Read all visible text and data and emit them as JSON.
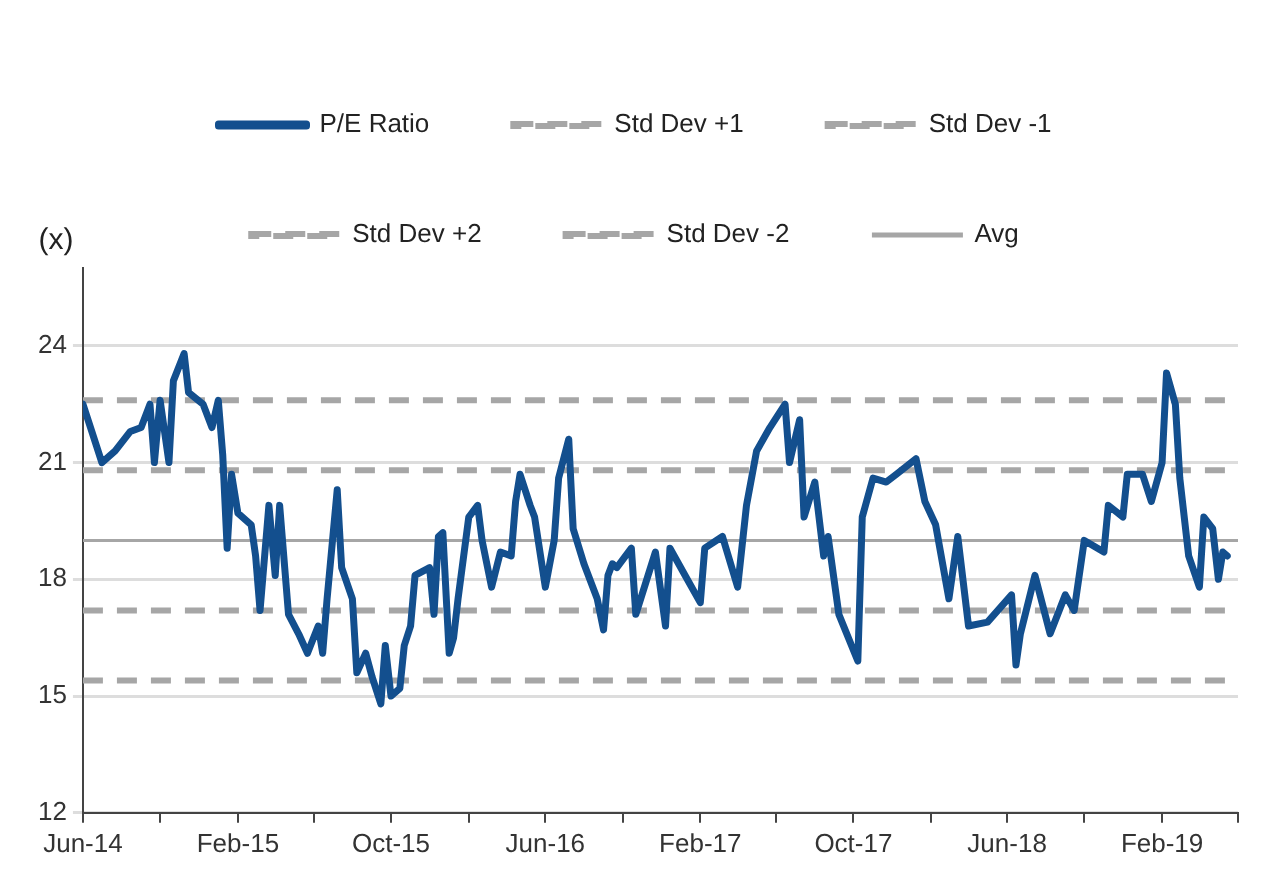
{
  "chart_data": {
    "type": "line",
    "ylabel": "(x)",
    "series": [
      {
        "name": "P/E Ratio",
        "color": "#134f8e",
        "x": [
          "2014-06-01",
          "2014-06-15",
          "2014-07-01",
          "2014-07-22",
          "2014-08-15",
          "2014-09-01",
          "2014-09-15",
          "2014-09-22",
          "2014-10-01",
          "2014-10-15",
          "2014-10-22",
          "2014-11-08",
          "2014-11-15",
          "2014-12-08",
          "2014-12-22",
          "2015-01-01",
          "2015-01-08",
          "2015-01-15",
          "2015-01-22",
          "2015-02-01",
          "2015-02-22",
          "2015-03-01",
          "2015-03-08",
          "2015-03-22",
          "2015-04-01",
          "2015-04-08",
          "2015-04-22",
          "2015-05-08",
          "2015-05-22",
          "2015-06-08",
          "2015-06-15",
          "2015-06-22",
          "2015-07-08",
          "2015-07-15",
          "2015-08-01",
          "2015-08-08",
          "2015-08-22",
          "2015-09-01",
          "2015-09-15",
          "2015-09-22",
          "2015-10-01",
          "2015-10-15",
          "2015-10-22",
          "2015-11-01",
          "2015-11-08",
          "2015-12-01",
          "2015-12-08",
          "2015-12-15",
          "2015-12-22",
          "2016-01-01",
          "2016-01-08",
          "2016-01-15",
          "2016-02-01",
          "2016-02-15",
          "2016-02-22",
          "2016-03-08",
          "2016-03-22",
          "2016-04-08",
          "2016-04-15",
          "2016-04-22",
          "2016-05-08",
          "2016-05-15",
          "2016-06-01",
          "2016-06-15",
          "2016-06-22",
          "2016-07-08",
          "2016-07-15",
          "2016-08-01",
          "2016-08-22",
          "2016-09-01",
          "2016-09-08",
          "2016-09-15",
          "2016-09-22",
          "2016-10-15",
          "2016-10-22",
          "2016-11-22",
          "2016-12-08",
          "2016-12-15",
          "2017-01-08",
          "2017-02-01",
          "2017-02-08",
          "2017-03-08",
          "2017-04-01",
          "2017-04-15",
          "2017-05-01",
          "2017-05-22",
          "2017-06-15",
          "2017-06-22",
          "2017-07-08",
          "2017-07-15",
          "2017-08-01",
          "2017-08-15",
          "2017-08-22",
          "2017-09-08",
          "2017-10-08",
          "2017-10-15",
          "2017-11-01",
          "2017-11-22",
          "2017-12-08",
          "2018-01-08",
          "2018-01-22",
          "2018-02-08",
          "2018-03-01",
          "2018-03-15",
          "2018-04-01",
          "2018-05-01",
          "2018-06-08",
          "2018-06-15",
          "2018-06-22",
          "2018-07-15",
          "2018-08-08",
          "2018-09-01",
          "2018-09-15",
          "2018-10-01",
          "2018-11-01",
          "2018-11-08",
          "2018-12-01",
          "2018-12-08",
          "2019-01-01",
          "2019-01-15",
          "2019-02-01",
          "2019-02-08",
          "2019-02-22",
          "2019-03-01",
          "2019-03-15",
          "2019-04-01",
          "2019-04-08",
          "2019-04-22",
          "2019-05-01",
          "2019-05-08",
          "2019-05-15"
        ],
        "values": [
          22.5,
          21.8,
          21.0,
          21.3,
          21.8,
          21.9,
          22.5,
          21.0,
          22.6,
          21.0,
          23.1,
          23.8,
          22.8,
          22.5,
          21.9,
          22.6,
          21.2,
          18.8,
          20.7,
          19.7,
          19.4,
          18.6,
          17.2,
          19.9,
          18.1,
          19.9,
          17.1,
          16.6,
          16.1,
          16.8,
          16.1,
          17.5,
          20.3,
          18.3,
          17.5,
          15.6,
          16.1,
          15.5,
          14.8,
          16.3,
          15.0,
          15.2,
          16.3,
          16.8,
          18.1,
          18.3,
          17.1,
          19.1,
          19.2,
          16.1,
          16.5,
          17.5,
          19.6,
          19.9,
          19.0,
          17.8,
          18.7,
          18.6,
          20.0,
          20.7,
          19.9,
          19.6,
          17.8,
          19.0,
          20.6,
          21.6,
          19.3,
          18.4,
          17.5,
          16.7,
          18.1,
          18.4,
          18.3,
          18.8,
          17.1,
          18.7,
          16.8,
          18.8,
          18.1,
          17.4,
          18.8,
          19.1,
          17.8,
          19.9,
          21.3,
          21.9,
          22.5,
          21.0,
          22.1,
          19.6,
          20.5,
          18.6,
          19.1,
          17.1,
          15.9,
          19.6,
          20.6,
          20.5,
          20.7,
          21.1,
          20.0,
          19.4,
          17.5,
          19.1,
          16.8,
          16.9,
          17.6,
          15.8,
          16.6,
          18.1,
          16.6,
          17.6,
          17.2,
          19.0,
          18.7,
          19.9,
          19.6,
          20.7,
          20.7,
          20.0,
          21.0,
          23.3,
          22.5,
          20.6,
          18.6,
          17.8,
          19.6,
          19.3,
          18.0,
          18.7,
          18.6
        ]
      }
    ],
    "ref_lines": [
      {
        "axis": "y",
        "value": 20.8,
        "label": "Std Dev +1",
        "color": "#a6a6a6",
        "line_style": "dashed"
      },
      {
        "axis": "y",
        "value": 17.2,
        "label": "Std Dev -1",
        "color": "#a6a6a6",
        "line_style": "dashed"
      },
      {
        "axis": "y",
        "value": 22.6,
        "label": "Std Dev +2",
        "color": "#a6a6a6",
        "line_style": "dashed"
      },
      {
        "axis": "y",
        "value": 15.4,
        "label": "Std Dev -2",
        "color": "#a6a6a6",
        "line_style": "dashed"
      },
      {
        "axis": "y",
        "value": 19.0,
        "label": "Avg",
        "color": "#a6a6a6",
        "line_style": "solid"
      }
    ],
    "xlim": [
      "2014-06",
      "2019-06"
    ],
    "xticks": [
      {
        "value": "2014-06",
        "label": "Jun-14"
      },
      {
        "value": "2014-10",
        "label": null
      },
      {
        "value": "2015-02",
        "label": "Feb-15"
      },
      {
        "value": "2015-06",
        "label": null
      },
      {
        "value": "2015-10",
        "label": "Oct-15"
      },
      {
        "value": "2016-02",
        "label": null
      },
      {
        "value": "2016-06",
        "label": "Jun-16"
      },
      {
        "value": "2016-10",
        "label": null
      },
      {
        "value": "2017-02",
        "label": "Feb-17"
      },
      {
        "value": "2017-06",
        "label": null
      },
      {
        "value": "2017-10",
        "label": "Oct-17"
      },
      {
        "value": "2018-02",
        "label": null
      },
      {
        "value": "2018-06",
        "label": "Jun-18"
      },
      {
        "value": "2018-10",
        "label": null
      },
      {
        "value": "2019-02",
        "label": "Feb-19"
      },
      {
        "value": "2019-06",
        "label": null
      }
    ],
    "ylim": [
      12,
      26
    ],
    "yticks": [
      12,
      15,
      18,
      21,
      24
    ],
    "grid": "y",
    "legend": "top",
    "marker": "none",
    "line_style": "solid"
  }
}
